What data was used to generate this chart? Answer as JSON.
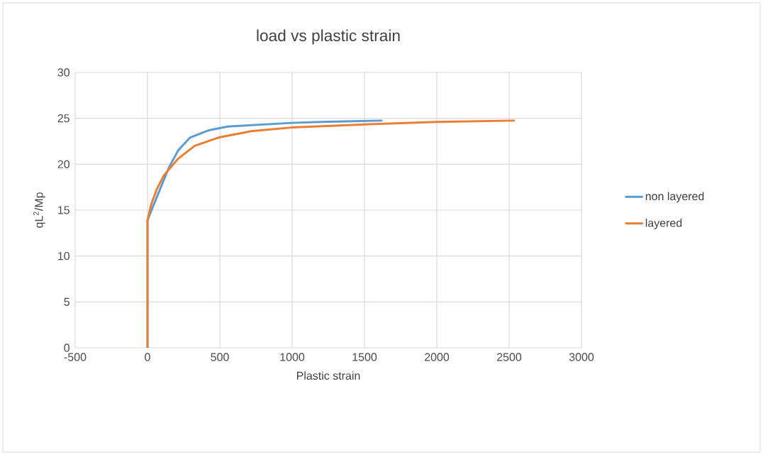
{
  "chart_data": {
    "type": "line",
    "title": "load vs plastic strain",
    "xlabel": "Plastic strain",
    "ylabel": "qL$^{2}$/Mp",
    "xlim": [
      -500,
      3000
    ],
    "xticks": [
      -500,
      0,
      500,
      1000,
      1500,
      2000,
      2500,
      3000
    ],
    "ylim": [
      0,
      30
    ],
    "yticks": [
      0,
      5,
      10,
      15,
      20,
      25,
      30
    ],
    "grid": true,
    "legend": "right",
    "marker": "none",
    "line_style": "solid",
    "series": [
      {
        "name": "non layered",
        "color": "#5b9bd5",
        "x": [
          0,
          0,
          33,
          147,
          212,
          294,
          425,
          555,
          997,
          1200,
          1618
        ],
        "values": [
          0,
          13.9,
          15.2,
          19.6,
          21.5,
          22.9,
          23.7,
          24.1,
          24.5,
          24.6,
          24.75
        ]
      },
      {
        "name": "layered",
        "color": "#ed7d31",
        "x": [
          0,
          0,
          25,
          65,
          114,
          212,
          327,
          490,
          719,
          997,
          1536,
          2000,
          2533
        ],
        "values": [
          0,
          13.9,
          15.6,
          17.3,
          18.8,
          20.6,
          22.0,
          22.9,
          23.6,
          24.0,
          24.36,
          24.6,
          24.75
        ]
      }
    ]
  }
}
